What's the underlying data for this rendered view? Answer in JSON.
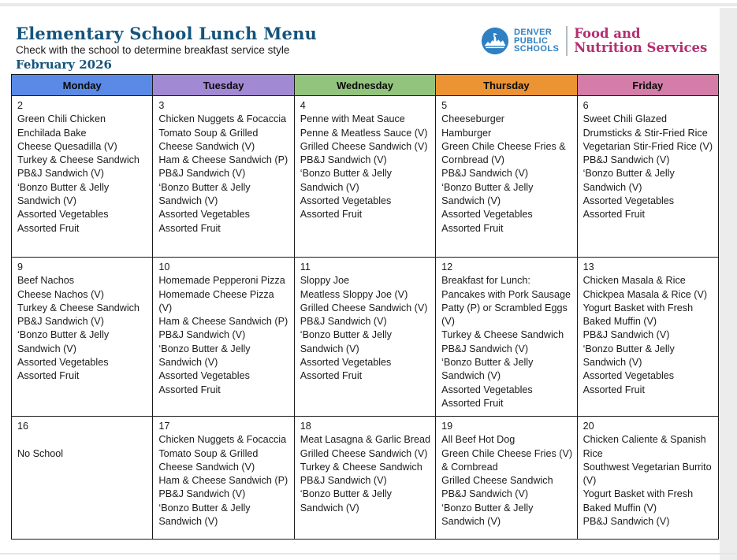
{
  "page": {
    "title": "Elementary School Lunch Menu",
    "subtitle": "Check with the school to determine breakfast service style",
    "month_label": "February 2026"
  },
  "logo": {
    "org_line1": "DENVER",
    "org_line2": "PUBLIC",
    "org_line3": "SCHOOLS",
    "dept_line1": "Food and",
    "dept_line2": "Nutrition Services",
    "org_color": "#2E80C3",
    "dept_color": "#B52E6F"
  },
  "calendar": {
    "days": [
      {
        "label": "Monday",
        "color": "#5A8AE6"
      },
      {
        "label": "Tuesday",
        "color": "#A289D4"
      },
      {
        "label": "Wednesday",
        "color": "#93C47D"
      },
      {
        "label": "Thursday",
        "color": "#EC9334"
      },
      {
        "label": "Friday",
        "color": "#D37DA8"
      }
    ],
    "weeks": [
      [
        {
          "date": "2",
          "items": [
            "Green Chili Chicken Enchilada Bake",
            "Cheese Quesadilla (V)",
            "Turkey & Cheese Sandwich",
            "PB&J Sandwich (V)",
            "‘Bonzo Butter & Jelly Sandwich (V)",
            "Assorted Vegetables",
            "Assorted Fruit"
          ]
        },
        {
          "date": "3",
          "items": [
            "Chicken Nuggets & Focaccia",
            "Tomato Soup & Grilled Cheese Sandwich (V)",
            "Ham & Cheese Sandwich (P)",
            "PB&J Sandwich (V)",
            "‘Bonzo Butter & Jelly Sandwich (V)",
            "Assorted Vegetables",
            "Assorted Fruit"
          ]
        },
        {
          "date": "4",
          "items": [
            "Penne with Meat Sauce",
            "Penne & Meatless Sauce (V)",
            "Grilled Cheese Sandwich (V)",
            "PB&J Sandwich (V)",
            "‘Bonzo Butter & Jelly Sandwich (V)",
            "Assorted Vegetables",
            "Assorted Fruit"
          ]
        },
        {
          "date": "5",
          "items": [
            "Cheeseburger",
            "Hamburger",
            "Green Chile Cheese Fries & Cornbread (V)",
            "PB&J Sandwich (V)",
            "‘Bonzo Butter & Jelly Sandwich (V)",
            "Assorted Vegetables",
            "Assorted Fruit"
          ]
        },
        {
          "date": "6",
          "items": [
            "Sweet Chili Glazed Drumsticks & Stir-Fried Rice",
            "Vegetarian Stir-Fried Rice (V)",
            "PB&J Sandwich (V)",
            "‘Bonzo Butter & Jelly Sandwich (V)",
            "Assorted Vegetables",
            "Assorted Fruit"
          ]
        }
      ],
      [
        {
          "date": "9",
          "items": [
            "Beef Nachos",
            "Cheese Nachos (V)",
            "Turkey & Cheese Sandwich",
            "PB&J Sandwich (V)",
            "‘Bonzo Butter & Jelly Sandwich (V)",
            "Assorted Vegetables",
            "Assorted Fruit"
          ]
        },
        {
          "date": "10",
          "items": [
            "Homemade Pepperoni Pizza",
            "Homemade Cheese Pizza (V)",
            "Ham & Cheese Sandwich (P)",
            "PB&J Sandwich (V)",
            "‘Bonzo Butter & Jelly Sandwich (V)",
            "Assorted Vegetables",
            "Assorted Fruit"
          ]
        },
        {
          "date": "11",
          "items": [
            "Sloppy Joe",
            "Meatless Sloppy Joe (V)",
            "Grilled Cheese Sandwich (V)",
            "PB&J Sandwich (V)",
            "‘Bonzo Butter & Jelly Sandwich (V)",
            "Assorted Vegetables",
            "Assorted Fruit"
          ]
        },
        {
          "date": "12",
          "items": [
            "Breakfast for Lunch:",
            "Pancakes with Pork Sausage Patty (P) or Scrambled Eggs (V)",
            "Turkey & Cheese Sandwich",
            "PB&J Sandwich (V)",
            "‘Bonzo Butter & Jelly Sandwich (V)",
            "Assorted Vegetables",
            "Assorted Fruit"
          ]
        },
        {
          "date": "13",
          "items": [
            "Chicken Masala & Rice",
            "Chickpea Masala & Rice (V)",
            "Yogurt Basket with Fresh Baked Muffin (V)",
            "PB&J Sandwich (V)",
            "‘Bonzo Butter & Jelly Sandwich (V)",
            "Assorted Vegetables",
            "Assorted Fruit"
          ]
        }
      ],
      [
        {
          "date": "16",
          "items": [
            "",
            "No School"
          ]
        },
        {
          "date": "17",
          "items": [
            "Chicken Nuggets & Focaccia",
            "Tomato Soup & Grilled Cheese Sandwich (V)",
            "Ham & Cheese Sandwich (P)",
            "PB&J Sandwich (V)",
            "‘Bonzo Butter & Jelly Sandwich (V)"
          ]
        },
        {
          "date": "18",
          "items": [
            "Meat Lasagna & Garlic Bread",
            "Grilled Cheese Sandwich (V)",
            "Turkey & Cheese Sandwich",
            "PB&J Sandwich (V)",
            "‘Bonzo Butter & Jelly Sandwich (V)"
          ]
        },
        {
          "date": "19",
          "items": [
            "All Beef Hot Dog",
            "Green Chile Cheese Fries (V) & Cornbread",
            "Grilled Cheese Sandwich",
            "PB&J Sandwich (V)",
            "‘Bonzo Butter & Jelly Sandwich (V)"
          ]
        },
        {
          "date": "20",
          "items": [
            "Chicken Caliente & Spanish Rice",
            "Southwest Vegetarian Burrito (V)",
            "Yogurt Basket with Fresh Baked Muffin (V)",
            "PB&J Sandwich (V)"
          ]
        }
      ]
    ]
  }
}
